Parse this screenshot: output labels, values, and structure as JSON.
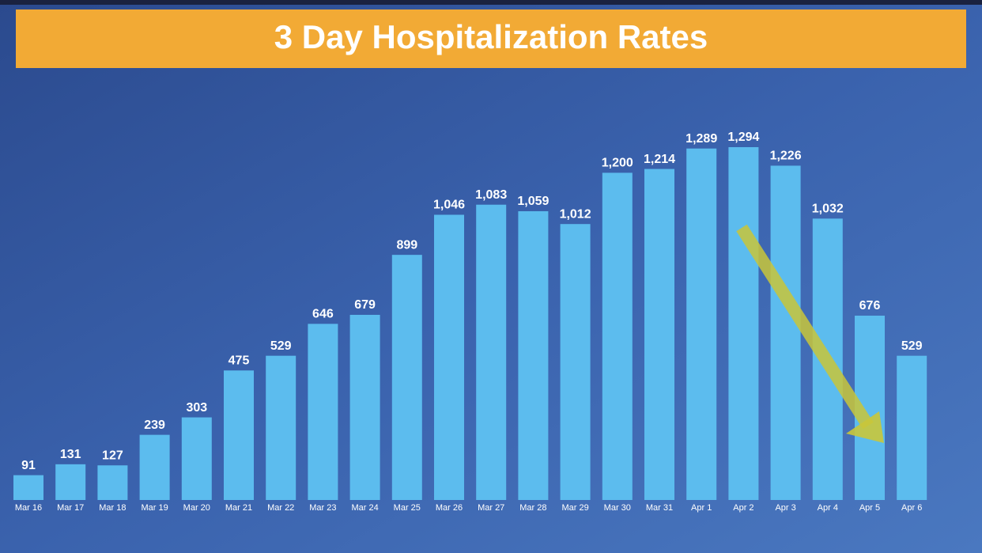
{
  "chart_data": {
    "type": "bar",
    "title": "3 Day Hospitalization Rates",
    "categories": [
      "Mar 16",
      "Mar 17",
      "Mar 18",
      "Mar 19",
      "Mar 20",
      "Mar 21",
      "Mar 22",
      "Mar 23",
      "Mar 24",
      "Mar 25",
      "Mar 26",
      "Mar 27",
      "Mar 28",
      "Mar 29",
      "Mar 30",
      "Mar 31",
      "Apr 1",
      "Apr 2",
      "Apr 3",
      "Apr 4",
      "Apr 5",
      "Apr 6"
    ],
    "values": [
      91,
      131,
      127,
      239,
      303,
      475,
      529,
      646,
      679,
      899,
      1046,
      1083,
      1059,
      1012,
      1200,
      1214,
      1289,
      1294,
      1226,
      1032,
      676,
      529
    ],
    "value_labels": [
      "91",
      "131",
      "127",
      "239",
      "303",
      "475",
      "529",
      "646",
      "679",
      "899",
      "1,046",
      "1,083",
      "1,059",
      "1,012",
      "1,200",
      "1,214",
      "1,289",
      "1,294",
      "1,226",
      "1,032",
      "676",
      "529"
    ],
    "color": "#5cbcee"
  }
}
